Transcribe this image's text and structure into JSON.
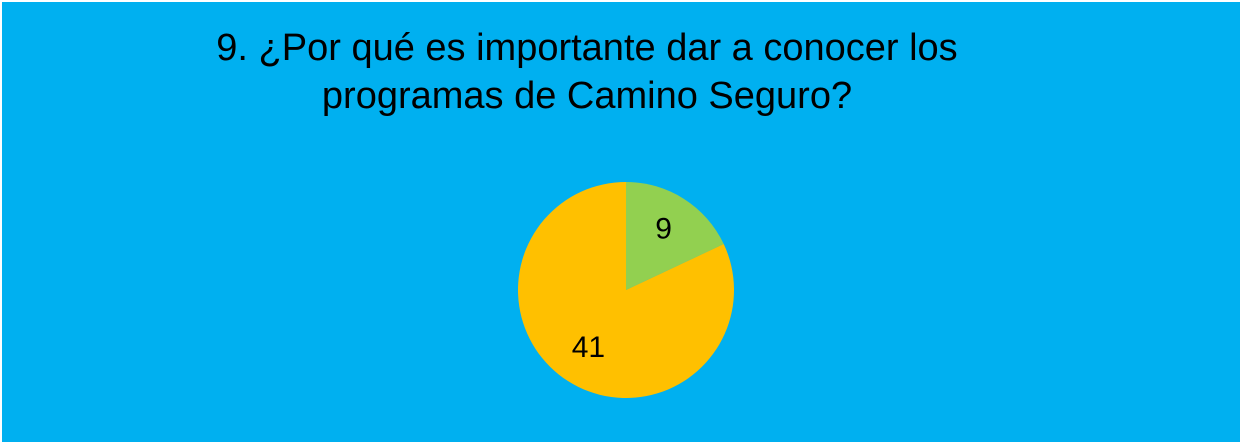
{
  "chart_data": {
    "type": "pie",
    "title": "9. ¿Por qué es importante dar a conocer los programas de Camino Seguro?",
    "values": [
      9,
      41
    ],
    "colors": [
      "#92d050",
      "#ffc000"
    ]
  }
}
